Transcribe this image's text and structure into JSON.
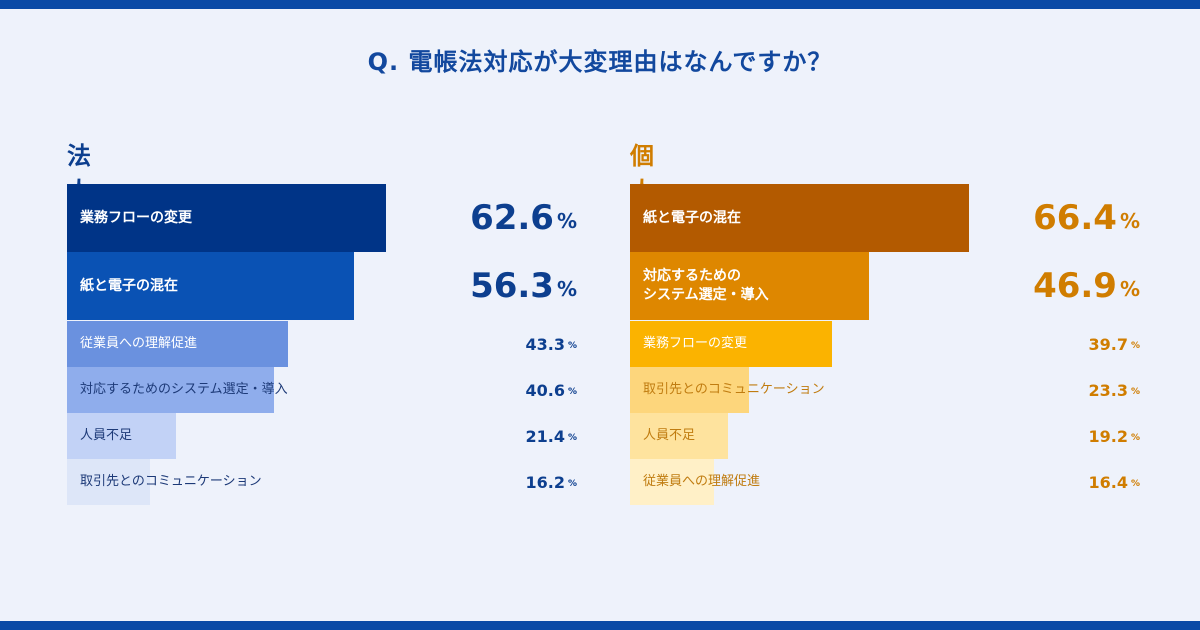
{
  "question": "Q. 電帳法対応が大変理由はなんですか？",
  "chart_data": [
    {
      "type": "bar",
      "title": "法人",
      "categories": [
        "業務フローの変更",
        "紙と電子の混在",
        "従業員への理解促進",
        "対応するためのシステム選定・導入",
        "人員不足",
        "取引先とのコミュニケーション"
      ],
      "values": [
        62.6,
        56.3,
        43.3,
        40.6,
        21.4,
        16.2
      ],
      "unit": "%",
      "value_labels": [
        "62.6",
        "56.3",
        "43.3",
        "40.6",
        "21.4",
        "16.2"
      ],
      "colors": [
        "#003487",
        "#0a52b4",
        "#6a91df",
        "#8fadec",
        "#c2d2f6",
        "#dde6f8"
      ],
      "label_colors": [
        "#ffffff",
        "#ffffff",
        "#ffffff",
        "#1d3a78",
        "#1d3a78",
        "#1d3a78"
      ],
      "title_color": "#0d3f8f",
      "value_color": "#0d3f8f"
    },
    {
      "type": "bar",
      "title": "個人",
      "categories": [
        "紙と電子の混在",
        "対応するための\nシステム選定・導入",
        "業務フローの変更",
        "取引先とのコミュニケーション",
        "人員不足",
        "従業員への理解促進"
      ],
      "values": [
        66.4,
        46.9,
        39.7,
        23.3,
        19.2,
        16.4
      ],
      "unit": "%",
      "value_labels": [
        "66.4",
        "46.9",
        "39.7",
        "23.3",
        "19.2",
        "16.4"
      ],
      "colors": [
        "#b35a00",
        "#de8700",
        "#fbb300",
        "#fdd67c",
        "#fee39e",
        "#fff0c7"
      ],
      "label_colors": [
        "#ffffff",
        "#ffffff",
        "#ffffff",
        "#c07c10",
        "#c07c10",
        "#c07c10"
      ],
      "title_color": "#d07d00",
      "value_color": "#d07d00"
    }
  ]
}
